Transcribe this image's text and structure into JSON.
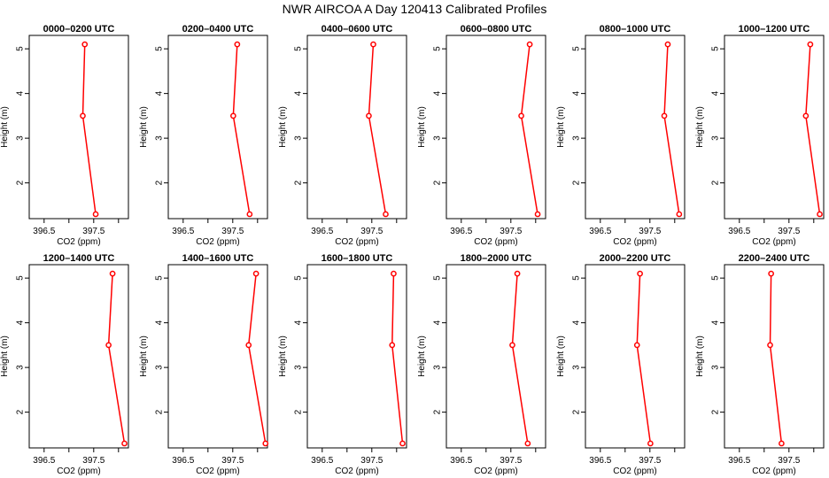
{
  "figure": {
    "title": "NWR AIRCOA A  Day 120413  Calibrated Profiles"
  },
  "chart_data": [
    {
      "type": "line",
      "title": "0000–0200 UTC",
      "xlabel": "CO2 (ppm)",
      "ylabel": "Height (m)",
      "x_ticks": [
        396.5,
        397.5
      ],
      "y_ticks": [
        2,
        3,
        4,
        5
      ],
      "xlim": [
        396.2,
        398.2
      ],
      "ylim": [
        1.2,
        5.3
      ],
      "grid": false,
      "series": [
        {
          "x": [
            397.32,
            397.28,
            397.54
          ],
          "y": [
            5.1,
            3.5,
            1.3
          ],
          "color": "#ff0000"
        }
      ]
    },
    {
      "type": "line",
      "title": "0200–0400 UTC",
      "xlabel": "CO2 (ppm)",
      "ylabel": "Height (m)",
      "x_ticks": [
        396.5,
        397.5
      ],
      "y_ticks": [
        2,
        3,
        4,
        5
      ],
      "xlim": [
        396.2,
        398.2
      ],
      "ylim": [
        1.2,
        5.3
      ],
      "grid": false,
      "series": [
        {
          "x": [
            397.59,
            397.51,
            397.84
          ],
          "y": [
            5.1,
            3.5,
            1.3
          ],
          "color": "#ff0000"
        }
      ]
    },
    {
      "type": "line",
      "title": "0400–0600 UTC",
      "xlabel": "CO2 (ppm)",
      "ylabel": "Height (m)",
      "x_ticks": [
        396.5,
        397.5
      ],
      "y_ticks": [
        2,
        3,
        4,
        5
      ],
      "xlim": [
        396.2,
        398.2
      ],
      "ylim": [
        1.2,
        5.3
      ],
      "grid": false,
      "series": [
        {
          "x": [
            397.53,
            397.44,
            397.78
          ],
          "y": [
            5.1,
            3.5,
            1.3
          ],
          "color": "#ff0000"
        }
      ]
    },
    {
      "type": "line",
      "title": "0600–0800 UTC",
      "xlabel": "CO2 (ppm)",
      "ylabel": "Height (m)",
      "x_ticks": [
        396.5,
        397.5
      ],
      "y_ticks": [
        2,
        3,
        4,
        5
      ],
      "xlim": [
        396.2,
        398.2
      ],
      "ylim": [
        1.2,
        5.3
      ],
      "grid": false,
      "series": [
        {
          "x": [
            397.88,
            397.71,
            398.04
          ],
          "y": [
            5.1,
            3.5,
            1.3
          ],
          "color": "#ff0000"
        }
      ]
    },
    {
      "type": "line",
      "title": "0800–1000 UTC",
      "xlabel": "CO2 (ppm)",
      "ylabel": "Height (m)",
      "x_ticks": [
        396.5,
        397.5
      ],
      "y_ticks": [
        2,
        3,
        4,
        5
      ],
      "xlim": [
        396.2,
        398.2
      ],
      "ylim": [
        1.2,
        5.3
      ],
      "grid": false,
      "series": [
        {
          "x": [
            397.86,
            397.79,
            398.09
          ],
          "y": [
            5.1,
            3.5,
            1.3
          ],
          "color": "#ff0000"
        }
      ]
    },
    {
      "type": "line",
      "title": "1000–1200 UTC",
      "xlabel": "CO2 (ppm)",
      "ylabel": "Height (m)",
      "x_ticks": [
        396.5,
        397.5
      ],
      "y_ticks": [
        2,
        3,
        4,
        5
      ],
      "xlim": [
        396.2,
        398.2
      ],
      "ylim": [
        1.2,
        5.3
      ],
      "grid": false,
      "series": [
        {
          "x": [
            397.93,
            397.84,
            398.12
          ],
          "y": [
            5.1,
            3.5,
            1.3
          ],
          "color": "#ff0000"
        }
      ]
    },
    {
      "type": "line",
      "title": "1200–1400 UTC",
      "xlabel": "CO2 (ppm)",
      "ylabel": "Height (m)",
      "x_ticks": [
        396.5,
        397.5
      ],
      "y_ticks": [
        2,
        3,
        4,
        5
      ],
      "xlim": [
        396.2,
        398.2
      ],
      "ylim": [
        1.2,
        5.3
      ],
      "grid": false,
      "series": [
        {
          "x": [
            397.88,
            397.8,
            398.12
          ],
          "y": [
            5.1,
            3.5,
            1.3
          ],
          "color": "#ff0000"
        }
      ]
    },
    {
      "type": "line",
      "title": "1400–1600 UTC",
      "xlabel": "CO2 (ppm)",
      "ylabel": "Height (m)",
      "x_ticks": [
        396.5,
        397.5
      ],
      "y_ticks": [
        2,
        3,
        4,
        5
      ],
      "xlim": [
        396.2,
        398.2
      ],
      "ylim": [
        1.2,
        5.3
      ],
      "grid": false,
      "series": [
        {
          "x": [
            397.97,
            397.82,
            398.16
          ],
          "y": [
            5.1,
            3.5,
            1.3
          ],
          "color": "#ff0000"
        }
      ]
    },
    {
      "type": "line",
      "title": "1600–1800 UTC",
      "xlabel": "CO2 (ppm)",
      "ylabel": "Height (m)",
      "x_ticks": [
        396.5,
        397.5
      ],
      "y_ticks": [
        2,
        3,
        4,
        5
      ],
      "xlim": [
        396.2,
        398.2
      ],
      "ylim": [
        1.2,
        5.3
      ],
      "grid": false,
      "series": [
        {
          "x": [
            397.94,
            397.91,
            398.12
          ],
          "y": [
            5.1,
            3.5,
            1.3
          ],
          "color": "#ff0000"
        }
      ]
    },
    {
      "type": "line",
      "title": "1800–2000 UTC",
      "xlabel": "CO2 (ppm)",
      "ylabel": "Height (m)",
      "x_ticks": [
        396.5,
        397.5
      ],
      "y_ticks": [
        2,
        3,
        4,
        5
      ],
      "xlim": [
        396.2,
        398.2
      ],
      "ylim": [
        1.2,
        5.3
      ],
      "grid": false,
      "series": [
        {
          "x": [
            397.63,
            397.53,
            397.84
          ],
          "y": [
            5.1,
            3.5,
            1.3
          ],
          "color": "#ff0000"
        }
      ]
    },
    {
      "type": "line",
      "title": "2000–2200 UTC",
      "xlabel": "CO2 (ppm)",
      "ylabel": "Height (m)",
      "x_ticks": [
        396.5,
        397.5
      ],
      "y_ticks": [
        2,
        3,
        4,
        5
      ],
      "xlim": [
        396.2,
        398.2
      ],
      "ylim": [
        1.2,
        5.3
      ],
      "grid": false,
      "series": [
        {
          "x": [
            397.3,
            397.24,
            397.51
          ],
          "y": [
            5.1,
            3.5,
            1.3
          ],
          "color": "#ff0000"
        }
      ]
    },
    {
      "type": "line",
      "title": "2200–2400 UTC",
      "xlabel": "CO2 (ppm)",
      "ylabel": "Height (m)",
      "x_ticks": [
        396.5,
        397.5
      ],
      "y_ticks": [
        2,
        3,
        4,
        5
      ],
      "xlim": [
        396.2,
        398.2
      ],
      "ylim": [
        1.2,
        5.3
      ],
      "grid": false,
      "series": [
        {
          "x": [
            397.14,
            397.12,
            397.35
          ],
          "y": [
            5.1,
            3.5,
            1.3
          ],
          "color": "#ff0000"
        }
      ]
    }
  ]
}
